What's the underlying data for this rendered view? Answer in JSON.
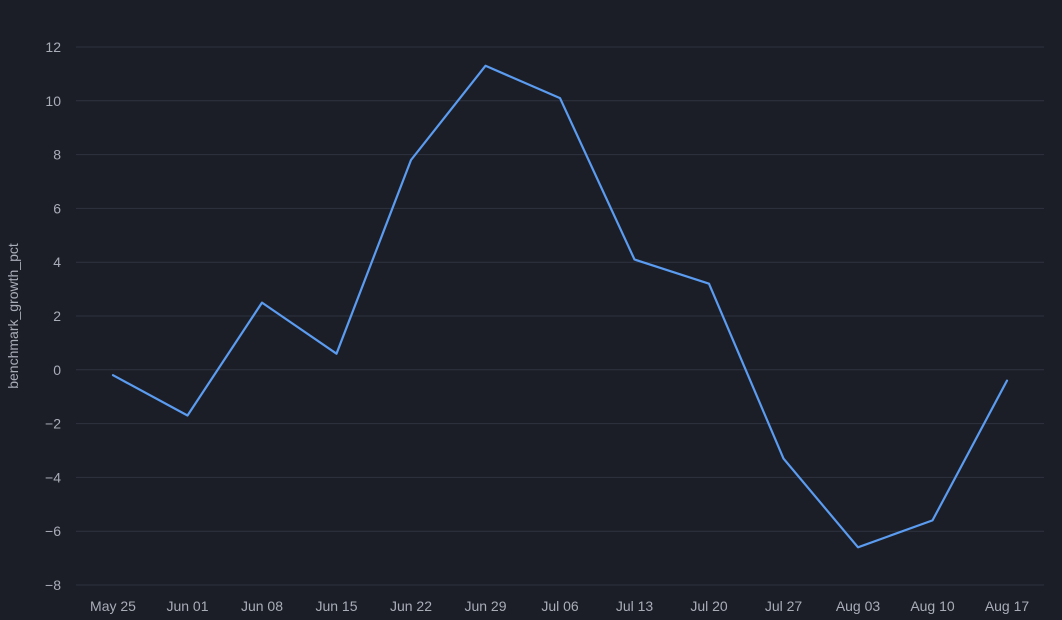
{
  "chart_data": {
    "type": "line",
    "x": [
      "May 25",
      "Jun 01",
      "Jun 08",
      "Jun 15",
      "Jun 22",
      "Jun 29",
      "Jul 06",
      "Jul 13",
      "Jul 20",
      "Jul 27",
      "Aug 03",
      "Aug 10",
      "Aug 17"
    ],
    "series": [
      {
        "values": [
          -0.2,
          -1.7,
          2.5,
          0.6,
          7.8,
          11.3,
          10.1,
          4.1,
          3.2,
          -3.3,
          -6.6,
          -5.6,
          -0.4
        ],
        "color": "#5b9bf0"
      }
    ],
    "title": "",
    "xlabel": "",
    "ylabel": "benchmark_growth_pct",
    "ylim": [
      -8,
      12
    ],
    "yticks": [
      -8,
      -6,
      -4,
      -2,
      0,
      2,
      4,
      6,
      8,
      10,
      12
    ],
    "ytick_labels": [
      "−8",
      "−6",
      "−4",
      "−2",
      "0",
      "2",
      "4",
      "6",
      "8",
      "10",
      "12"
    ],
    "grid": true,
    "legend": "none"
  }
}
